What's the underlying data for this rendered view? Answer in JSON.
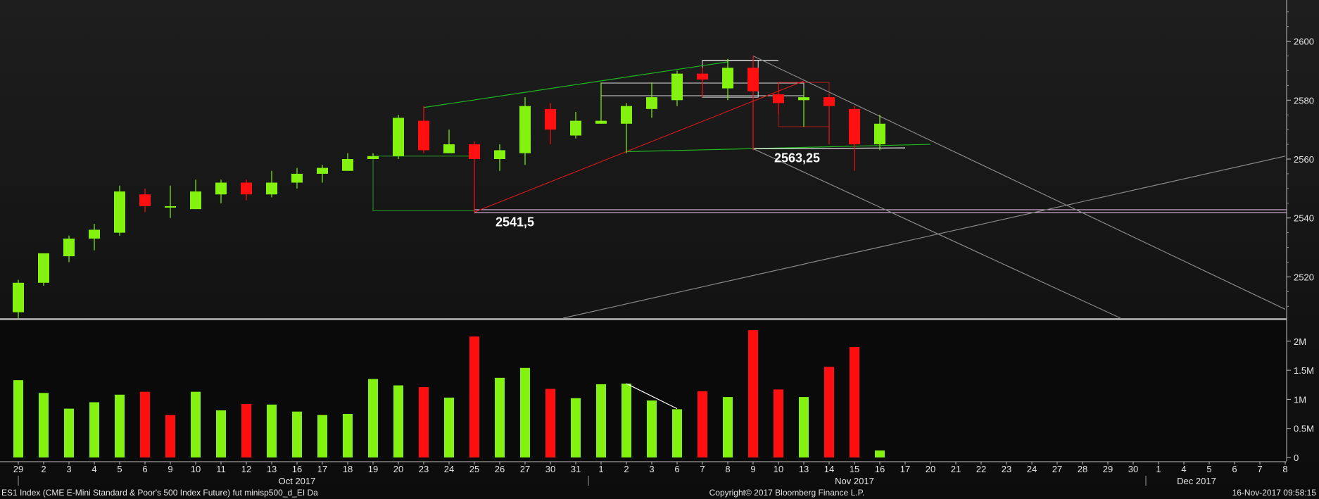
{
  "chart_data": {
    "type": "candlestick",
    "price_axis": {
      "ticks": [
        2520,
        2540,
        2560,
        2580,
        2600
      ],
      "ylim": [
        2506,
        2614
      ]
    },
    "volume_axis": {
      "ticks": [
        0,
        500000,
        1000000,
        1500000,
        2000000
      ],
      "tick_labels": [
        "0",
        "0.5M",
        "1M",
        "1.5M",
        "2M"
      ],
      "ylim": [
        0,
        2300000
      ]
    },
    "x_labels": [
      "29",
      "2",
      "3",
      "4",
      "5",
      "6",
      "9",
      "10",
      "11",
      "12",
      "13",
      "16",
      "17",
      "18",
      "19",
      "20",
      "23",
      "24",
      "25",
      "26",
      "27",
      "30",
      "31",
      "1",
      "2",
      "3",
      "6",
      "7",
      "8",
      "9",
      "10",
      "13",
      "14",
      "15",
      "16",
      "17",
      "20",
      "21",
      "22",
      "23",
      "24",
      "27",
      "28",
      "29",
      "30",
      "1",
      "4",
      "5",
      "6",
      "7",
      "8"
    ],
    "month_labels": [
      {
        "label": "Oct 2017",
        "index": 11
      },
      {
        "label": "Nov 2017",
        "index": 33
      },
      {
        "label": "Dec 2017",
        "index": 46.5
      }
    ],
    "candles": [
      {
        "o": 2508,
        "h": 2519,
        "l": 2506,
        "c": 2518,
        "dir": "up"
      },
      {
        "o": 2518,
        "h": 2528,
        "l": 2517,
        "c": 2528,
        "dir": "up"
      },
      {
        "o": 2527,
        "h": 2534,
        "l": 2525,
        "c": 2533,
        "dir": "up"
      },
      {
        "o": 2533,
        "h": 2538,
        "l": 2529,
        "c": 2536,
        "dir": "up"
      },
      {
        "o": 2535,
        "h": 2551,
        "l": 2534,
        "c": 2549,
        "dir": "up"
      },
      {
        "o": 2548,
        "h": 2550,
        "l": 2542,
        "c": 2544,
        "dir": "down"
      },
      {
        "o": 2544,
        "h": 2551,
        "l": 2540,
        "c": 2544,
        "dir": "up"
      },
      {
        "o": 2543,
        "h": 2553,
        "l": 2543,
        "c": 2549,
        "dir": "up"
      },
      {
        "o": 2548,
        "h": 2553,
        "l": 2545,
        "c": 2552,
        "dir": "up"
      },
      {
        "o": 2552,
        "h": 2553,
        "l": 2546,
        "c": 2548,
        "dir": "down"
      },
      {
        "o": 2548,
        "h": 2556,
        "l": 2547,
        "c": 2552,
        "dir": "up"
      },
      {
        "o": 2552,
        "h": 2557,
        "l": 2550,
        "c": 2555,
        "dir": "up"
      },
      {
        "o": 2555,
        "h": 2558,
        "l": 2552,
        "c": 2557,
        "dir": "up"
      },
      {
        "o": 2556,
        "h": 2562,
        "l": 2556,
        "c": 2560,
        "dir": "up"
      },
      {
        "o": 2560,
        "h": 2562,
        "l": 2560,
        "c": 2561,
        "dir": "up"
      },
      {
        "o": 2561,
        "h": 2575,
        "l": 2560,
        "c": 2574,
        "dir": "up"
      },
      {
        "o": 2573,
        "h": 2578,
        "l": 2562,
        "c": 2563,
        "dir": "down"
      },
      {
        "o": 2562,
        "h": 2570,
        "l": 2562,
        "c": 2565,
        "dir": "up"
      },
      {
        "o": 2565,
        "h": 2566,
        "l": 2542,
        "c": 2560,
        "dir": "down"
      },
      {
        "o": 2560,
        "h": 2565,
        "l": 2556,
        "c": 2563,
        "dir": "up"
      },
      {
        "o": 2562,
        "h": 2581,
        "l": 2558,
        "c": 2578,
        "dir": "up"
      },
      {
        "o": 2577,
        "h": 2579,
        "l": 2565,
        "c": 2570,
        "dir": "down"
      },
      {
        "o": 2568,
        "h": 2576,
        "l": 2567,
        "c": 2573,
        "dir": "up"
      },
      {
        "o": 2572,
        "h": 2586,
        "l": 2572,
        "c": 2573,
        "dir": "up"
      },
      {
        "o": 2572,
        "h": 2579,
        "l": 2562,
        "c": 2578,
        "dir": "up"
      },
      {
        "o": 2577,
        "h": 2586,
        "l": 2574,
        "c": 2581,
        "dir": "up"
      },
      {
        "o": 2580,
        "h": 2590,
        "l": 2578,
        "c": 2589,
        "dir": "up"
      },
      {
        "o": 2589,
        "h": 2591,
        "l": 2581,
        "c": 2587,
        "dir": "down"
      },
      {
        "o": 2584,
        "h": 2594,
        "l": 2580,
        "c": 2591,
        "dir": "up"
      },
      {
        "o": 2591,
        "h": 2595,
        "l": 2563,
        "c": 2583,
        "dir": "down"
      },
      {
        "o": 2582,
        "h": 2586,
        "l": 2575,
        "c": 2579,
        "dir": "down"
      },
      {
        "o": 2580,
        "h": 2584,
        "l": 2571,
        "c": 2581,
        "dir": "up"
      },
      {
        "o": 2581,
        "h": 2582,
        "l": 2565,
        "c": 2578,
        "dir": "down"
      },
      {
        "o": 2577,
        "h": 2578,
        "l": 2556,
        "c": 2565,
        "dir": "down"
      },
      {
        "o": 2565,
        "h": 2575,
        "l": 2563,
        "c": 2572,
        "dir": "up"
      }
    ],
    "volumes": [
      {
        "v": 1330000,
        "dir": "up"
      },
      {
        "v": 1110000,
        "dir": "up"
      },
      {
        "v": 840000,
        "dir": "up"
      },
      {
        "v": 950000,
        "dir": "up"
      },
      {
        "v": 1080000,
        "dir": "up"
      },
      {
        "v": 1130000,
        "dir": "down"
      },
      {
        "v": 730000,
        "dir": "down"
      },
      {
        "v": 1130000,
        "dir": "up"
      },
      {
        "v": 810000,
        "dir": "up"
      },
      {
        "v": 920000,
        "dir": "down"
      },
      {
        "v": 910000,
        "dir": "up"
      },
      {
        "v": 790000,
        "dir": "up"
      },
      {
        "v": 730000,
        "dir": "up"
      },
      {
        "v": 750000,
        "dir": "up"
      },
      {
        "v": 1350000,
        "dir": "up"
      },
      {
        "v": 1240000,
        "dir": "up"
      },
      {
        "v": 1210000,
        "dir": "down"
      },
      {
        "v": 1030000,
        "dir": "up"
      },
      {
        "v": 2080000,
        "dir": "down"
      },
      {
        "v": 1370000,
        "dir": "up"
      },
      {
        "v": 1540000,
        "dir": "up"
      },
      {
        "v": 1180000,
        "dir": "down"
      },
      {
        "v": 1020000,
        "dir": "up"
      },
      {
        "v": 1260000,
        "dir": "up"
      },
      {
        "v": 1270000,
        "dir": "up"
      },
      {
        "v": 980000,
        "dir": "up"
      },
      {
        "v": 830000,
        "dir": "up"
      },
      {
        "v": 1140000,
        "dir": "down"
      },
      {
        "v": 1040000,
        "dir": "up"
      },
      {
        "v": 2190000,
        "dir": "down"
      },
      {
        "v": 1170000,
        "dir": "down"
      },
      {
        "v": 1040000,
        "dir": "up"
      },
      {
        "v": 1560000,
        "dir": "down"
      },
      {
        "v": 1900000,
        "dir": "down"
      },
      {
        "v": 120000,
        "dir": "up"
      }
    ],
    "annotations": [
      {
        "text": "2541,5",
        "i": 18,
        "y": 2541.5
      },
      {
        "text": "2563,25",
        "i": 29,
        "y": 2563.25
      }
    ],
    "trendlines": [
      {
        "color": "#1fb81f",
        "p1": {
          "i": 16,
          "y": 2577.5
        },
        "p2": {
          "i": 28,
          "y": 2593
        }
      },
      {
        "color": "#1fb81f",
        "p1": {
          "i": 24,
          "y": 2562.5
        },
        "p2": {
          "i": 36,
          "y": 2565
        }
      },
      {
        "color": "#cc1a1a",
        "p1": {
          "i": 18,
          "y": 2542
        },
        "p2": {
          "i": 31,
          "y": 2586.5
        }
      },
      {
        "color": "#ffffff",
        "p1": {
          "i": 27,
          "y": 2593.5
        },
        "p2": {
          "i": 30,
          "y": 2593.5
        }
      },
      {
        "color": "#ffffff",
        "p1": {
          "i": 29,
          "y": 2563.5
        },
        "p2": {
          "i": 35,
          "y": 2563.8
        }
      },
      {
        "color": "#8a8a8a",
        "p1": {
          "i": 29,
          "y": 2595
        },
        "p2": {
          "i": 50,
          "y": 2509
        }
      },
      {
        "color": "#8a8a8a",
        "p1": {
          "i": 29,
          "y": 2563.5
        },
        "p2": {
          "i": 43.5,
          "y": 2506
        }
      },
      {
        "color": "#8a8a8a",
        "p1": {
          "i": 21.5,
          "y": 2506
        },
        "p2": {
          "i": 50,
          "y": 2561
        }
      }
    ],
    "boxes": [
      {
        "color": "#ffffff",
        "i1": 27,
        "i2": 29.2,
        "y1": 2581,
        "y2": 2593.5
      },
      {
        "color": "#ffffff",
        "i1": 23,
        "i2": 31,
        "y1": 2581.5,
        "y2": 2585.8
      },
      {
        "color": "#cc1a1a",
        "i1": 30,
        "i2": 32,
        "y1": 2571,
        "y2": 2586
      },
      {
        "color": "#1fb81f",
        "i1": 14,
        "i2": 18,
        "y1": 2542.5,
        "y2": 2561
      }
    ],
    "hlines": [
      {
        "color": "#ffd0ff",
        "y": 2542.8
      },
      {
        "color": "#ffd0ff",
        "y": 2541.8
      }
    ],
    "volume_trendline": {
      "color": "#ffffff",
      "p1": {
        "i": 24,
        "v": 1270000
      },
      "p2": {
        "i": 26,
        "v": 840000
      }
    },
    "up_color": "#84f20f",
    "down_color": "#ff0f0f"
  },
  "footer": {
    "left": "ES1 Index (CME E-Mini Standard & Poor's 500 Index Future) fut minisp500_d_EI  Da",
    "center": "Copyright© 2017 Bloomberg Finance L.P.",
    "right": "16-Nov-2017 09:58:15"
  }
}
